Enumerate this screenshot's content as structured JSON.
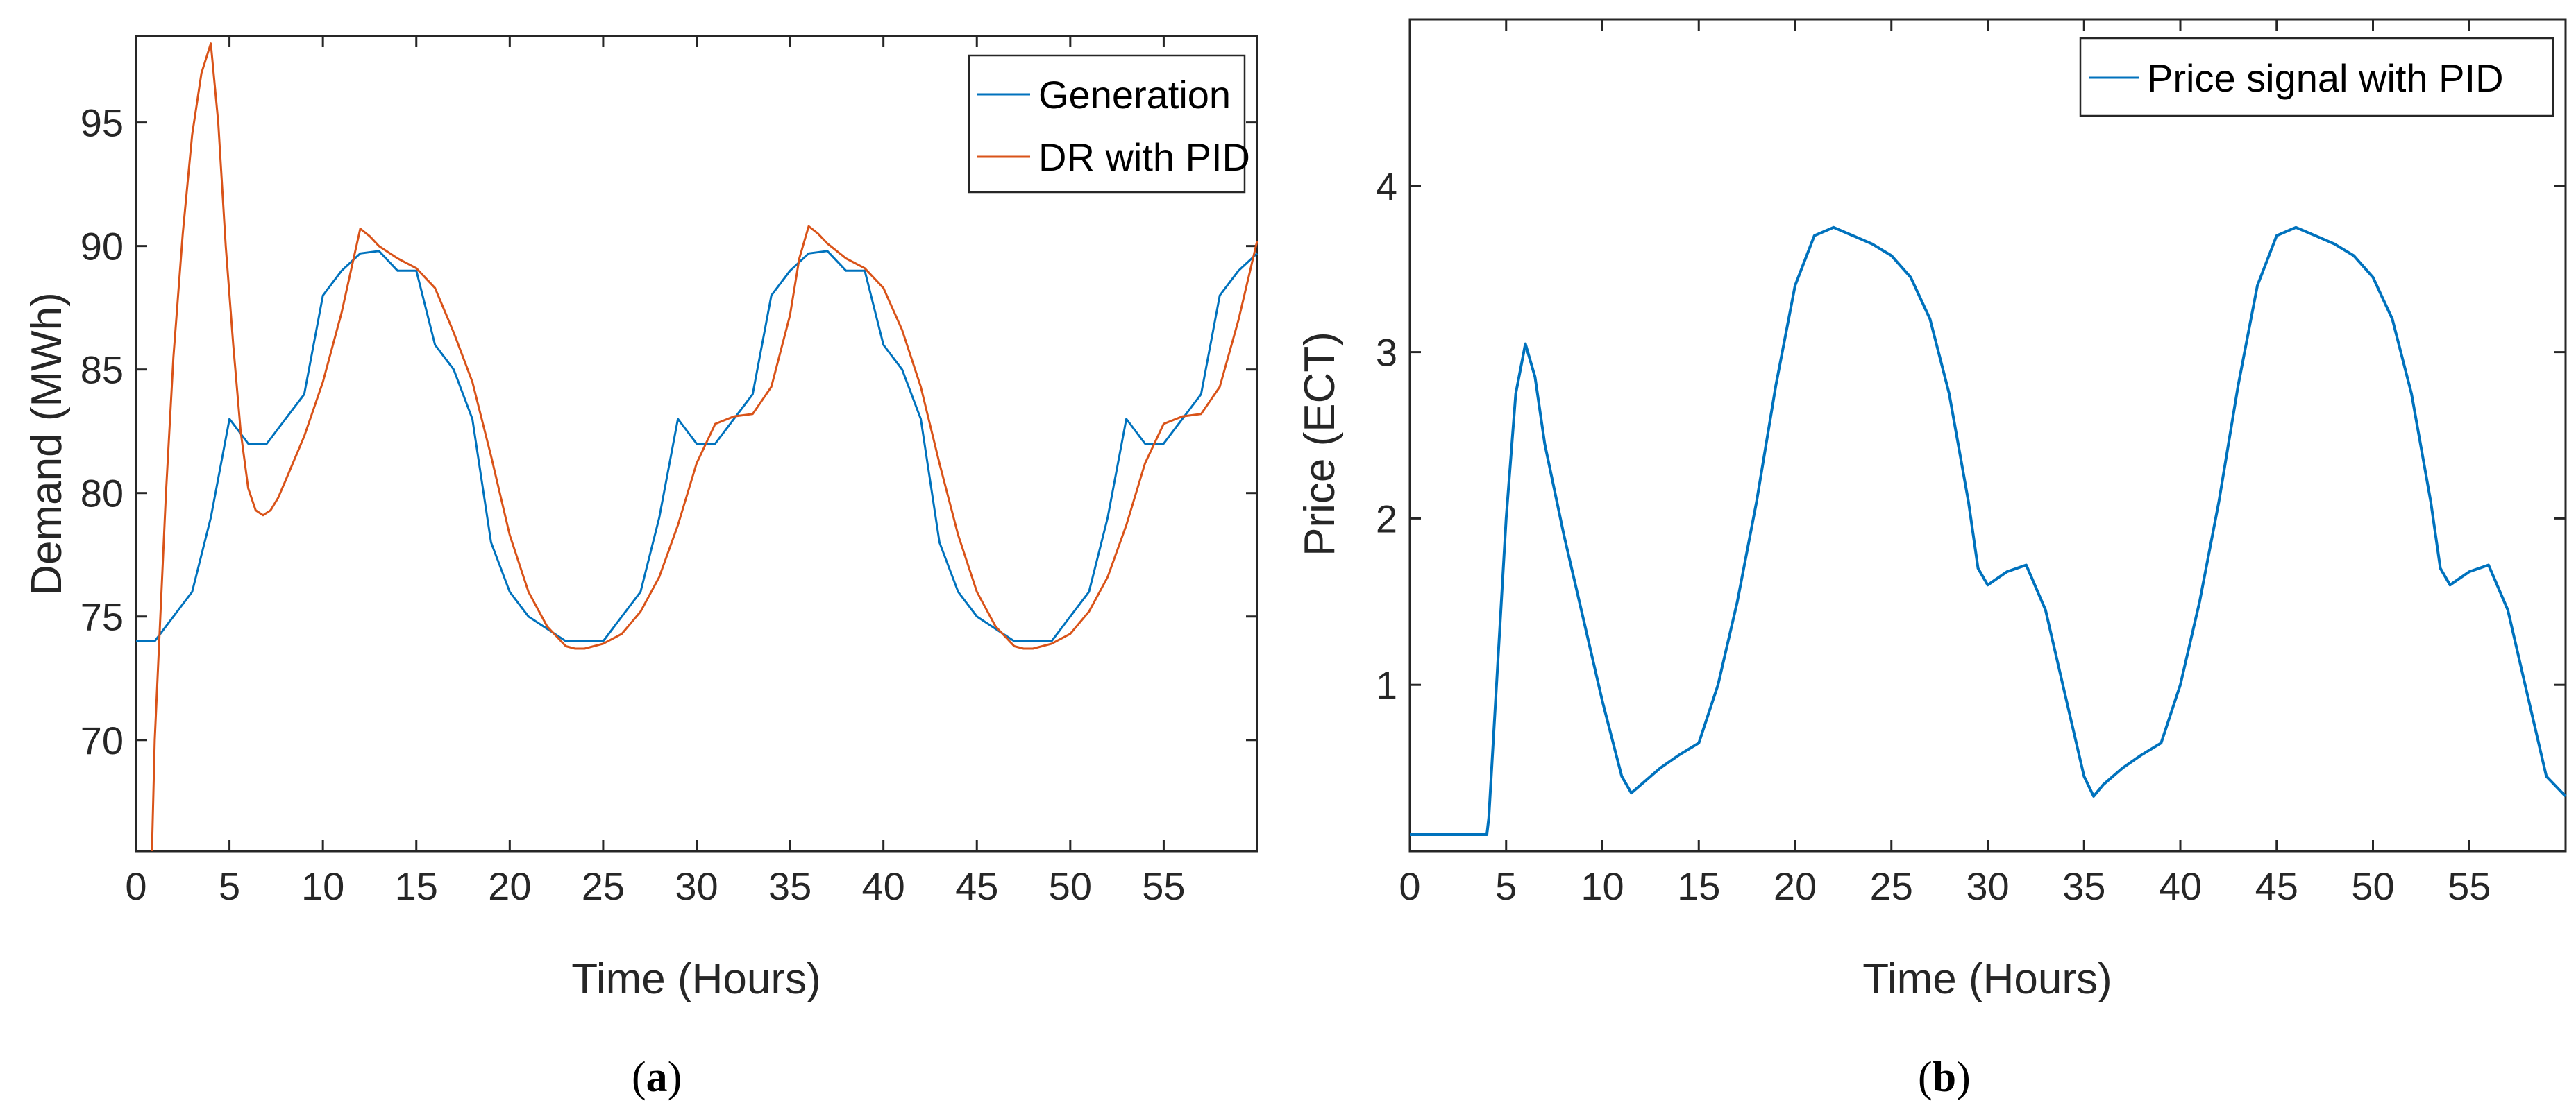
{
  "chart_data": [
    {
      "id": "a",
      "type": "line",
      "caption_open": "(",
      "caption_letter": "a",
      "caption_close": ")",
      "title": "",
      "xlabel": "Time (Hours)",
      "ylabel": "Demand (MWh)",
      "xlim": [
        0,
        60
      ],
      "ylim": [
        65.5,
        98.5
      ],
      "xticks": [
        "0",
        "5",
        "10",
        "15",
        "20",
        "25",
        "30",
        "35",
        "40",
        "45",
        "50",
        "55"
      ],
      "yticks": [
        "70",
        "75",
        "80",
        "85",
        "90",
        "95"
      ],
      "grid": false,
      "legend_position": "top-right",
      "series": [
        {
          "name": "Generation",
          "color": "#0072BD",
          "x": [
            0,
            1,
            2,
            3,
            4,
            5,
            6,
            7,
            8,
            9,
            10,
            11,
            12,
            13,
            14,
            15,
            16,
            17,
            18,
            19,
            20,
            21,
            22,
            23,
            24,
            25,
            26,
            27,
            28,
            29,
            30,
            31,
            32,
            33,
            34,
            35,
            36,
            37,
            38,
            39,
            40,
            41,
            42,
            43,
            44,
            45,
            46,
            47,
            48,
            49,
            50,
            51,
            52,
            53,
            54,
            55,
            56,
            57,
            58,
            59,
            60
          ],
          "values": [
            74,
            74,
            75,
            76,
            79,
            83,
            82,
            82,
            83,
            84,
            88,
            89,
            89.7,
            89.8,
            89,
            89,
            86,
            85,
            83,
            78,
            76,
            75,
            74.5,
            74,
            74,
            74,
            75,
            76,
            79,
            83,
            82,
            82,
            83,
            84,
            88,
            89,
            89.7,
            89.8,
            89,
            89,
            86,
            85,
            83,
            78,
            76,
            75,
            74.5,
            74,
            74,
            74,
            75,
            76,
            79,
            83,
            82,
            82,
            83,
            84,
            88,
            89,
            89.7
          ]
        },
        {
          "name": "DR with PID",
          "color": "#D95319",
          "x": [
            0.85,
            1.0,
            1.3,
            1.6,
            2.0,
            2.5,
            3.0,
            3.5,
            4.0,
            4.4,
            4.8,
            5.2,
            5.6,
            6.0,
            6.4,
            6.8,
            7.2,
            7.6,
            8,
            9,
            10,
            11,
            11.5,
            12,
            12.5,
            13,
            14,
            15,
            16,
            17,
            18,
            19,
            20,
            21,
            22,
            23,
            23.5,
            24,
            25,
            26,
            27,
            28,
            29,
            30,
            31,
            32,
            33,
            34,
            35,
            35.5,
            36,
            36.5,
            37,
            38,
            39,
            40,
            41,
            42,
            43,
            44,
            45,
            46,
            47,
            47.5,
            48,
            49,
            50,
            51,
            52,
            53,
            54,
            55,
            56,
            57,
            58,
            59,
            60
          ],
          "values": [
            65.5,
            70,
            75,
            80,
            85.5,
            90.5,
            94.5,
            97,
            98.2,
            95,
            90,
            86,
            82.5,
            80.2,
            79.3,
            79.1,
            79.3,
            79.8,
            80.5,
            82.3,
            84.5,
            87.3,
            89,
            90.7,
            90.4,
            90,
            89.5,
            89.1,
            88.3,
            86.5,
            84.5,
            81.5,
            78.3,
            76,
            74.6,
            73.8,
            73.7,
            73.7,
            73.9,
            74.3,
            75.2,
            76.6,
            78.7,
            81.2,
            82.8,
            83.1,
            83.2,
            84.3,
            87.2,
            89.5,
            90.8,
            90.5,
            90.1,
            89.5,
            89.1,
            88.3,
            86.6,
            84.3,
            81.2,
            78.3,
            76,
            74.6,
            73.8,
            73.7,
            73.7,
            73.9,
            74.3,
            75.2,
            76.6,
            78.7,
            81.2,
            82.8,
            83.1,
            83.2,
            84.3,
            87,
            90.2
          ]
        }
      ]
    },
    {
      "id": "b",
      "type": "line",
      "caption_open": "(",
      "caption_letter": "b",
      "caption_close": ")",
      "title": "",
      "xlabel": "Time (Hours)",
      "ylabel": "Price (ECT)",
      "xlim": [
        0,
        60
      ],
      "ylim": [
        0,
        5
      ],
      "xticks": [
        "0",
        "5",
        "10",
        "15",
        "20",
        "25",
        "30",
        "35",
        "40",
        "45",
        "50",
        "55"
      ],
      "yticks": [
        "1",
        "2",
        "3",
        "4"
      ],
      "grid": false,
      "legend_position": "top-right",
      "series": [
        {
          "name": "Price signal with PID",
          "color": "#0072BD",
          "x": [
            0,
            4.0,
            4.1,
            5,
            5.5,
            6,
            6.5,
            7,
            8,
            9,
            10,
            11,
            11.5,
            12,
            13,
            14,
            15,
            16,
            17,
            18,
            19,
            20,
            21,
            22,
            23,
            24,
            25,
            26,
            27,
            28,
            29,
            29.5,
            30,
            31,
            32,
            33,
            34,
            35,
            35.5,
            36,
            37,
            38,
            39,
            40,
            41,
            42,
            43,
            44,
            45,
            46,
            47,
            48,
            49,
            50,
            51,
            52,
            53,
            53.5,
            54,
            55,
            56,
            57,
            58,
            59,
            60
          ],
          "values": [
            0.1,
            0.1,
            0.2,
            2.0,
            2.75,
            3.05,
            2.85,
            2.45,
            1.9,
            1.4,
            0.9,
            0.45,
            0.35,
            0.4,
            0.5,
            0.58,
            0.65,
            1.0,
            1.5,
            2.1,
            2.8,
            3.4,
            3.7,
            3.75,
            3.7,
            3.65,
            3.58,
            3.45,
            3.2,
            2.75,
            2.1,
            1.7,
            1.6,
            1.68,
            1.72,
            1.45,
            0.95,
            0.45,
            0.33,
            0.4,
            0.5,
            0.58,
            0.65,
            1.0,
            1.5,
            2.1,
            2.8,
            3.4,
            3.7,
            3.75,
            3.7,
            3.65,
            3.58,
            3.45,
            3.2,
            2.75,
            2.1,
            1.7,
            1.6,
            1.68,
            1.72,
            1.45,
            0.95,
            0.45,
            0.33
          ]
        }
      ]
    }
  ]
}
